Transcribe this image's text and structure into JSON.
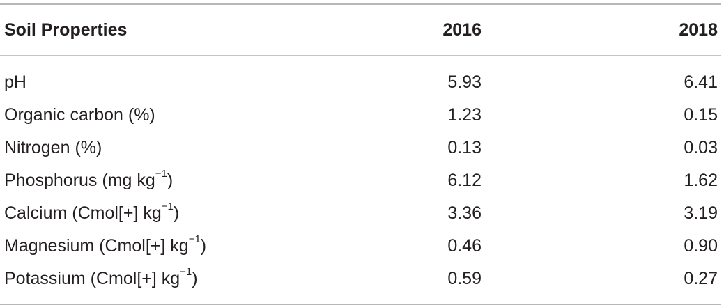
{
  "table": {
    "headers": [
      "Soil Properties",
      "2016",
      "2018"
    ],
    "rows": [
      {
        "property": "pH",
        "unit_base": "",
        "unit_sup": "",
        "unit_close": "",
        "v2016": "5.93",
        "v2018": "6.41"
      },
      {
        "property": "Organic carbon (%)",
        "unit_base": "",
        "unit_sup": "",
        "unit_close": "",
        "v2016": "1.23",
        "v2018": "0.15"
      },
      {
        "property": "Nitrogen (%)",
        "unit_base": "",
        "unit_sup": "",
        "unit_close": "",
        "v2016": "0.13",
        "v2018": "0.03"
      },
      {
        "property": "Phosphorus (mg kg",
        "unit_base": "",
        "unit_sup": "−1",
        "unit_close": ")",
        "v2016": "6.12",
        "v2018": "1.62"
      },
      {
        "property": "Calcium (Cmol[+] kg",
        "unit_base": "",
        "unit_sup": "−1",
        "unit_close": ")",
        "v2016": "3.36",
        "v2018": "3.19"
      },
      {
        "property": "Magnesium (Cmol[+] kg",
        "unit_base": "",
        "unit_sup": "−1",
        "unit_close": ")",
        "v2016": "0.46",
        "v2018": "0.90"
      },
      {
        "property": "Potassium (Cmol[+] kg",
        "unit_base": "",
        "unit_sup": "−1",
        "unit_close": ")",
        "v2016": "0.59",
        "v2018": "0.27"
      }
    ]
  }
}
